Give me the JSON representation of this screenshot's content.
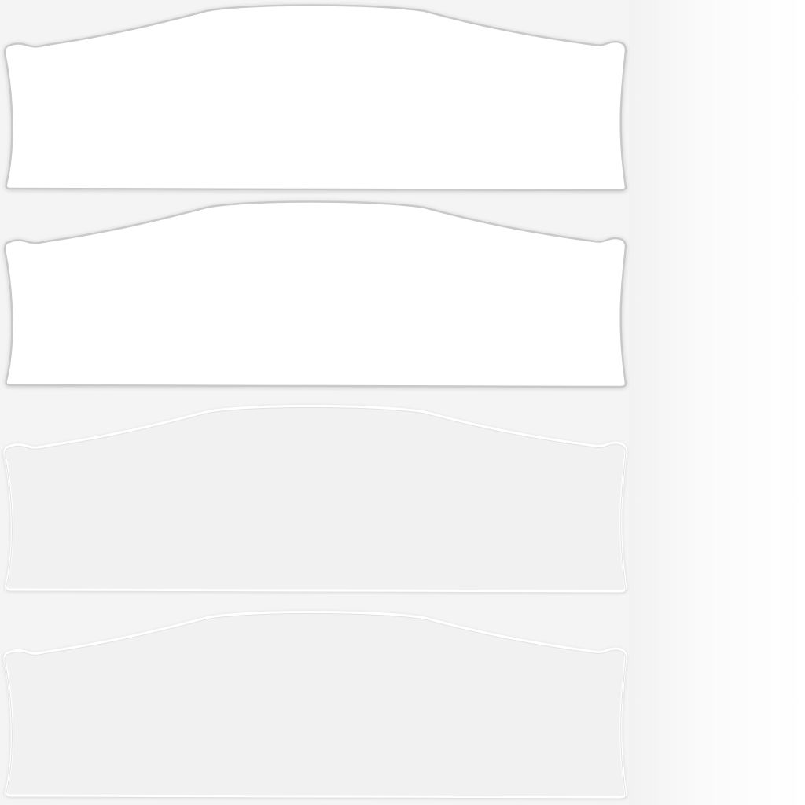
{
  "sheet": {
    "background": "#f4f4f4",
    "side_tint": "#fbfbfb"
  },
  "panels": [
    {
      "id": "panel-1",
      "state": "normal",
      "fill": "#ffffff",
      "edge": "#c9c9c9"
    },
    {
      "id": "panel-2",
      "state": "hover",
      "fill": "#ffffff",
      "edge": "#c9c9c9"
    },
    {
      "id": "panel-3",
      "state": "pressed",
      "fill": "#f1f1f1",
      "edge": "#ffffff"
    },
    {
      "id": "panel-4",
      "state": "disabled",
      "fill": "#f1f1f1",
      "edge": "#ffffff"
    }
  ]
}
